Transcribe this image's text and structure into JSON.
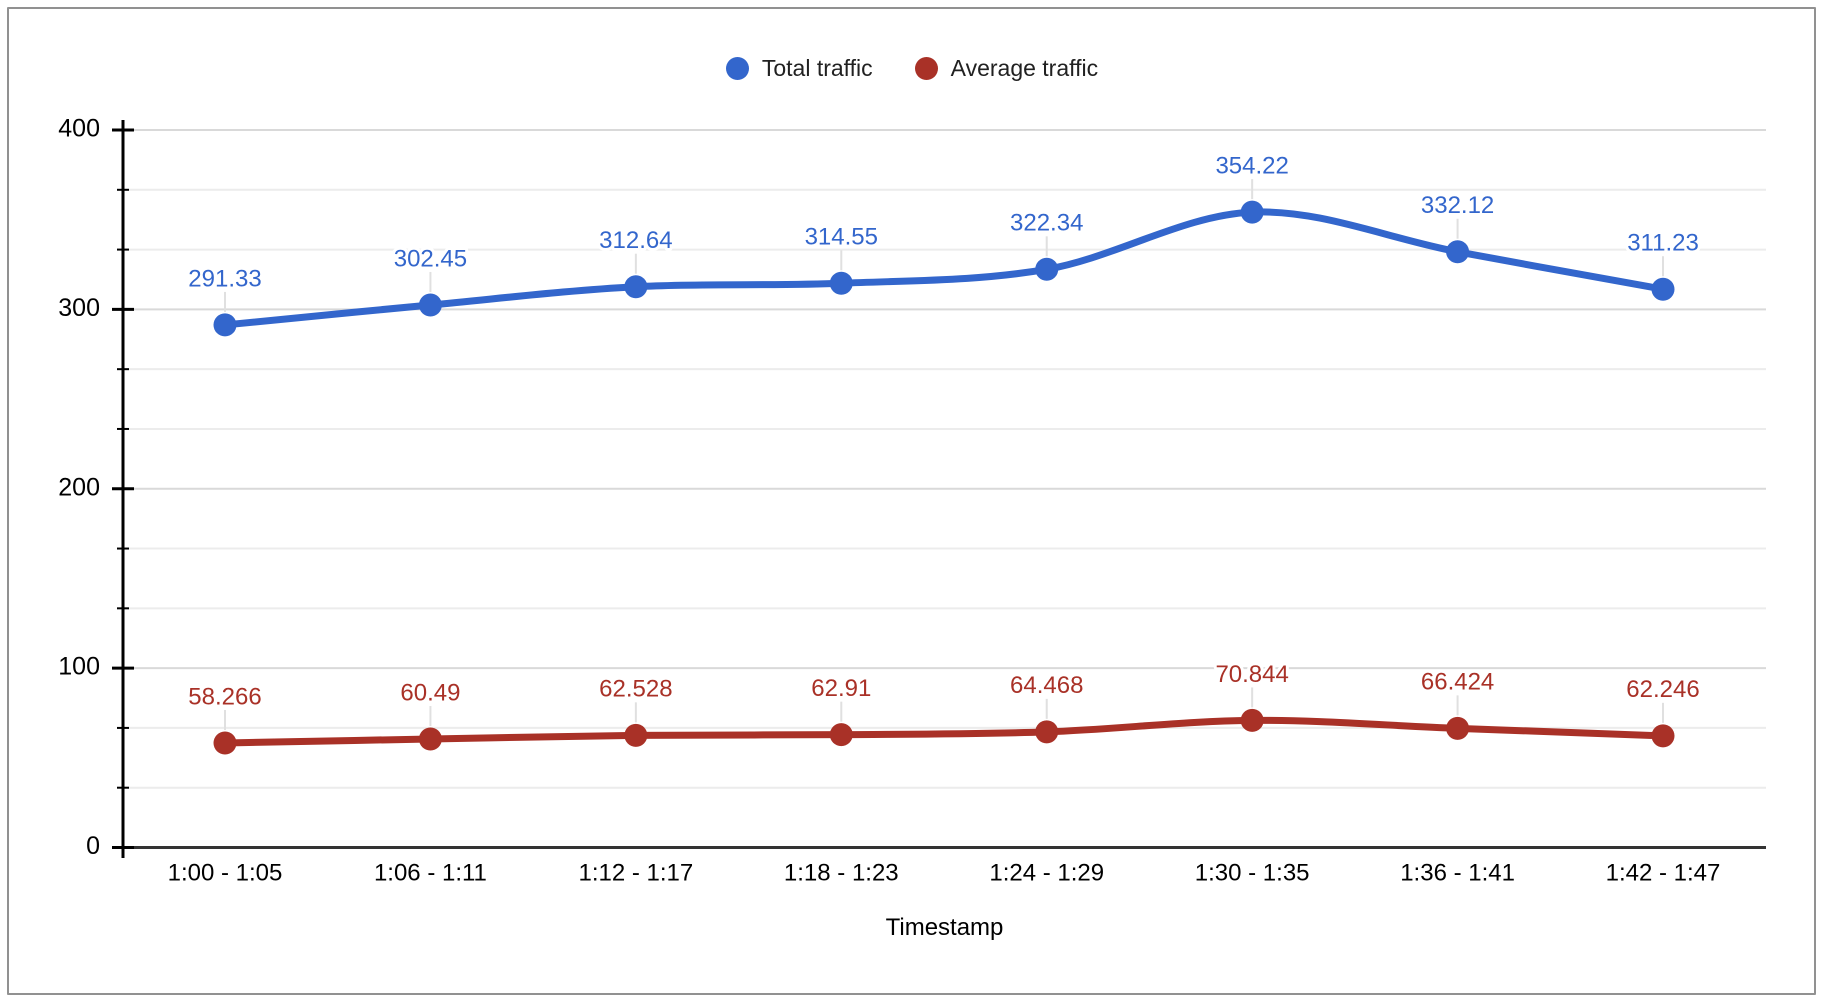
{
  "chart_data": {
    "type": "line",
    "title": "",
    "xlabel": "Timestamp",
    "ylabel": "",
    "smooth": true,
    "grid": true,
    "legend_position": "top",
    "categories": [
      "1:00 - 1:05",
      "1:06 - 1:11",
      "1:12 - 1:17",
      "1:18 - 1:23",
      "1:24 - 1:29",
      "1:30 - 1:35",
      "1:36 - 1:41",
      "1:42 - 1:47"
    ],
    "series": [
      {
        "name": "Total traffic",
        "color": "#3366cc",
        "values": [
          291.33,
          302.45,
          312.64,
          314.55,
          322.34,
          354.22,
          332.12,
          311.23
        ]
      },
      {
        "name": "Average traffic",
        "color": "#a93127",
        "values": [
          58.266,
          60.49,
          62.528,
          62.91,
          64.468,
          70.844,
          66.424,
          62.246
        ]
      }
    ],
    "y_axis": {
      "min": 0,
      "max": 400,
      "major_tick_step": 100,
      "minor_divisions_per_major": 3,
      "tick_labels": [
        "0",
        "100",
        "200",
        "300",
        "400"
      ]
    }
  },
  "colors": {
    "series_blue": "#3366cc",
    "series_red": "#a93127",
    "axis_line": "#000000",
    "baseline": "#333333",
    "gridline_major": "#d9d9d9",
    "gridline_minor": "#ececec",
    "label_stub": "#e0e0e0",
    "tick_text": "#000000",
    "legend_text": "#212121",
    "frame_border": "#919191",
    "background": "#ffffff"
  }
}
